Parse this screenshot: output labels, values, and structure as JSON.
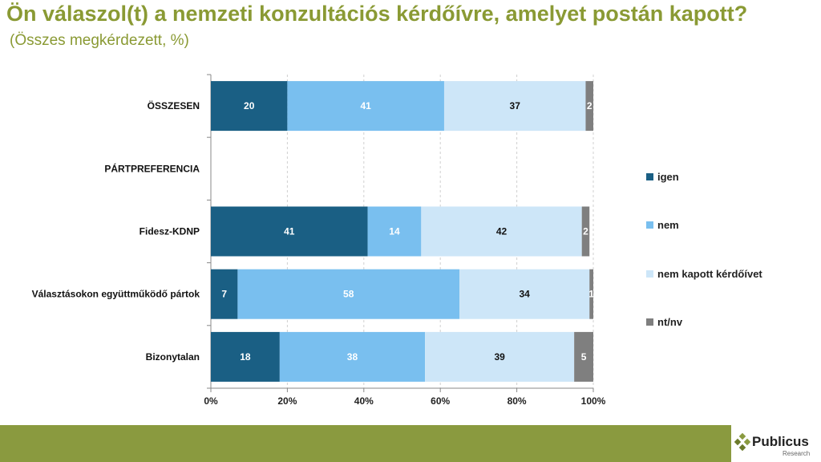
{
  "title": "Ön válaszol(t) a nemzeti konzultációs kérdőívre, amelyet postán kapott?",
  "subtitle": "(Összes megkérdezett, %)",
  "logo": {
    "name": "Publicus",
    "sub": "Research"
  },
  "colors": {
    "title": "#8a9a34",
    "igen": "#1a5f84",
    "nem": "#79bfef",
    "nem_kapott": "#cde6f8",
    "ntnv": "#7f7f7f",
    "footer": "#8a9a3f"
  },
  "chart_data": {
    "type": "bar",
    "orientation": "horizontal",
    "stacked": true,
    "categories": [
      "ÖSSZESEN",
      "PÁRTPREFERENCIA",
      "Fidesz-KDNP",
      "Választásokon együttműködő pártok",
      "Bizonytalan"
    ],
    "series": [
      {
        "name": "igen",
        "values": [
          20,
          null,
          41,
          7,
          18
        ]
      },
      {
        "name": "nem",
        "values": [
          41,
          null,
          14,
          58,
          38
        ]
      },
      {
        "name": "nem kapott kérdőívet",
        "values": [
          37,
          null,
          42,
          34,
          39
        ]
      },
      {
        "name": "nt/nv",
        "values": [
          2,
          null,
          2,
          1,
          5
        ]
      }
    ],
    "xlim": [
      0,
      100
    ],
    "xticks": [
      "0%",
      "20%",
      "40%",
      "60%",
      "80%",
      "100%"
    ],
    "legend_position": "right"
  }
}
